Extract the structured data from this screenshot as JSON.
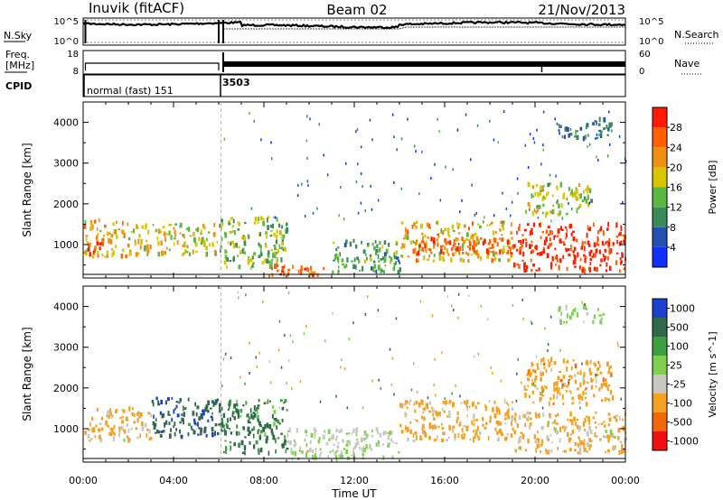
{
  "header": {
    "station": "Inuvik (fitACF)",
    "beam": "Beam 02",
    "date": "21/Nov/2013"
  },
  "noise_panel": {
    "left_label": "N.Sky",
    "right_label": "N.Search",
    "left_ticks": [
      "10^5",
      "10^0"
    ],
    "right_ticks": [
      "10^5",
      "10^0"
    ]
  },
  "freq_panel": {
    "left_label_1": "Freq.",
    "left_label_2": "[MHz]",
    "right_label": "Nave",
    "left_ticks": [
      "18",
      "8"
    ],
    "right_ticks": [
      "60",
      "0"
    ]
  },
  "cpid_panel": {
    "label": "CPID",
    "modes": [
      {
        "text": "normal (fast) 151",
        "start_hour": 0
      },
      {
        "text": "3503",
        "start_hour": 6
      }
    ]
  },
  "x_axis": {
    "label": "Time UT",
    "ticks": [
      "00:00",
      "04:00",
      "08:00",
      "12:00",
      "16:00",
      "20:00",
      "00:00"
    ],
    "range_hours": [
      0,
      24
    ]
  },
  "chart_data": [
    {
      "type": "heatmap",
      "quantity": "Power",
      "ylabel": "Slant Range [km]",
      "ylim": [
        180,
        4500
      ],
      "yticks": [
        1000,
        2000,
        3000,
        4000
      ],
      "xlim": [
        0,
        24
      ],
      "colorbar": {
        "label": "Power [dB]",
        "range": [
          0,
          32
        ],
        "ticks": [
          "4",
          "8",
          "12",
          "16",
          "20",
          "24",
          "28"
        ],
        "colors": [
          "#1030ff",
          "#2450b0",
          "#3a8a5a",
          "#5ab840",
          "#d8c400",
          "#f09010",
          "#ff6000",
          "#ff1a00"
        ]
      },
      "bands": [
        {
          "t0": 0.0,
          "t1": 2.0,
          "r0": 700,
          "r1": 1600,
          "value": 20
        },
        {
          "t0": 0.2,
          "t1": 0.8,
          "r0": 750,
          "r1": 1150,
          "value": 29
        },
        {
          "t0": 2.0,
          "t1": 6.0,
          "r0": 750,
          "r1": 1500,
          "value": 18
        },
        {
          "t0": 6.0,
          "t1": 9.0,
          "r0": 400,
          "r1": 1700,
          "value": 14
        },
        {
          "t0": 8.0,
          "t1": 11.0,
          "r0": 220,
          "r1": 500,
          "value": 27
        },
        {
          "t0": 11.0,
          "t1": 14.0,
          "r0": 300,
          "r1": 1100,
          "value": 12
        },
        {
          "t0": 14.0,
          "t1": 19.0,
          "r0": 600,
          "r1": 1550,
          "value": 20
        },
        {
          "t0": 14.5,
          "t1": 19.0,
          "r0": 750,
          "r1": 1150,
          "value": 28
        },
        {
          "t0": 19.0,
          "t1": 24.0,
          "r0": 350,
          "r1": 1500,
          "value": 30
        },
        {
          "t0": 19.5,
          "t1": 22.5,
          "r0": 1700,
          "r1": 2500,
          "value": 16
        },
        {
          "t0": 21.0,
          "t1": 23.5,
          "r0": 3600,
          "r1": 4100,
          "value": 8
        }
      ]
    },
    {
      "type": "heatmap",
      "quantity": "Velocity",
      "ylabel": "Slant Range [km]",
      "ylim": [
        180,
        4500
      ],
      "yticks": [
        1000,
        2000,
        3000,
        4000
      ],
      "xlim": [
        0,
        24
      ],
      "colorbar": {
        "label": "Velocity [m s^-1]",
        "ticks": [
          "1000",
          "500",
          "100",
          "25",
          "-25",
          "-100",
          "-500",
          "-1000"
        ],
        "colors": [
          "#1a40d0",
          "#306848",
          "#3ca040",
          "#7ed050",
          "#c8c8c0",
          "#f4a020",
          "#f06808",
          "#f01010"
        ]
      },
      "bands": [
        {
          "t0": 0.0,
          "t1": 3.0,
          "r0": 700,
          "r1": 1500,
          "value": -150
        },
        {
          "t0": 3.0,
          "t1": 6.0,
          "r0": 800,
          "r1": 1750,
          "value": 400
        },
        {
          "t0": 6.0,
          "t1": 9.0,
          "r0": 400,
          "r1": 1700,
          "value": 120
        },
        {
          "t0": 9.0,
          "t1": 14.0,
          "r0": 250,
          "r1": 1000,
          "value": -30
        },
        {
          "t0": 14.0,
          "t1": 19.0,
          "r0": 700,
          "r1": 1700,
          "value": -200
        },
        {
          "t0": 19.0,
          "t1": 24.0,
          "r0": 400,
          "r1": 1400,
          "value": -150
        },
        {
          "t0": 19.5,
          "t1": 23.5,
          "r0": 1600,
          "r1": 2700,
          "value": -300
        },
        {
          "t0": 21.0,
          "t1": 23.0,
          "r0": 3600,
          "r1": 4000,
          "value": 0
        }
      ]
    }
  ]
}
